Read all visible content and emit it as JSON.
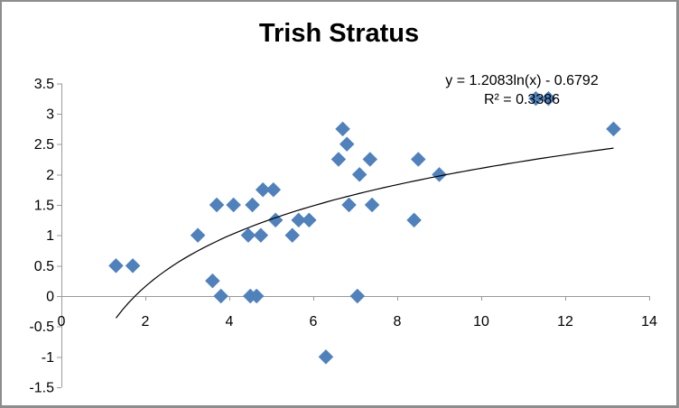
{
  "chart": {
    "background": "#ffffff",
    "border_color": "#8d8d8d"
  },
  "chart_data": {
    "type": "scatter",
    "title": "Trish Stratus",
    "annotation": {
      "equation": "y = 1.2083ln(x) - 0.6792",
      "r_squared": "R² = 0.3386"
    },
    "x_axis": {
      "min": 0,
      "max": 14,
      "tick_step": 2,
      "ticks": [
        0,
        2,
        4,
        6,
        8,
        10,
        12,
        14
      ]
    },
    "y_axis": {
      "min": -1.5,
      "max": 3.5,
      "tick_step": 0.5,
      "ticks": [
        -1.5,
        -1,
        -0.5,
        0,
        0.5,
        1,
        1.5,
        2,
        2.5,
        3,
        3.5
      ]
    },
    "grid": false,
    "legend_position": "none",
    "axis_color": "#999999",
    "text_color": "#000000",
    "series": [
      {
        "name": "Trish Stratus",
        "marker": "diamond",
        "color": "#4f81bd",
        "points": [
          [
            1.3,
            0.5
          ],
          [
            1.7,
            0.5
          ],
          [
            3.25,
            1
          ],
          [
            3.6,
            0.25
          ],
          [
            3.7,
            1.5
          ],
          [
            3.8,
            0
          ],
          [
            4.1,
            1.5
          ],
          [
            4.45,
            1
          ],
          [
            4.5,
            0
          ],
          [
            4.55,
            1.5
          ],
          [
            4.65,
            0
          ],
          [
            4.75,
            1
          ],
          [
            4.8,
            1.75
          ],
          [
            5.05,
            1.75
          ],
          [
            5.1,
            1.25
          ],
          [
            5.5,
            1
          ],
          [
            5.65,
            1.25
          ],
          [
            5.9,
            1.25
          ],
          [
            6.3,
            -1
          ],
          [
            6.6,
            2.25
          ],
          [
            6.7,
            2.75
          ],
          [
            6.8,
            2.5
          ],
          [
            6.85,
            1.5
          ],
          [
            7.05,
            0
          ],
          [
            7.1,
            2
          ],
          [
            7.35,
            2.25
          ],
          [
            7.4,
            1.5
          ],
          [
            8.4,
            1.25
          ],
          [
            8.5,
            2.25
          ],
          [
            9,
            2
          ],
          [
            11.3,
            3.25
          ],
          [
            11.6,
            3.25
          ],
          [
            13.15,
            2.75
          ]
        ]
      }
    ],
    "trendline": {
      "type": "logarithmic",
      "a": 1.2083,
      "b": -0.6792,
      "x_start": 1.3,
      "x_end": 13.15,
      "color": "#000000"
    }
  }
}
